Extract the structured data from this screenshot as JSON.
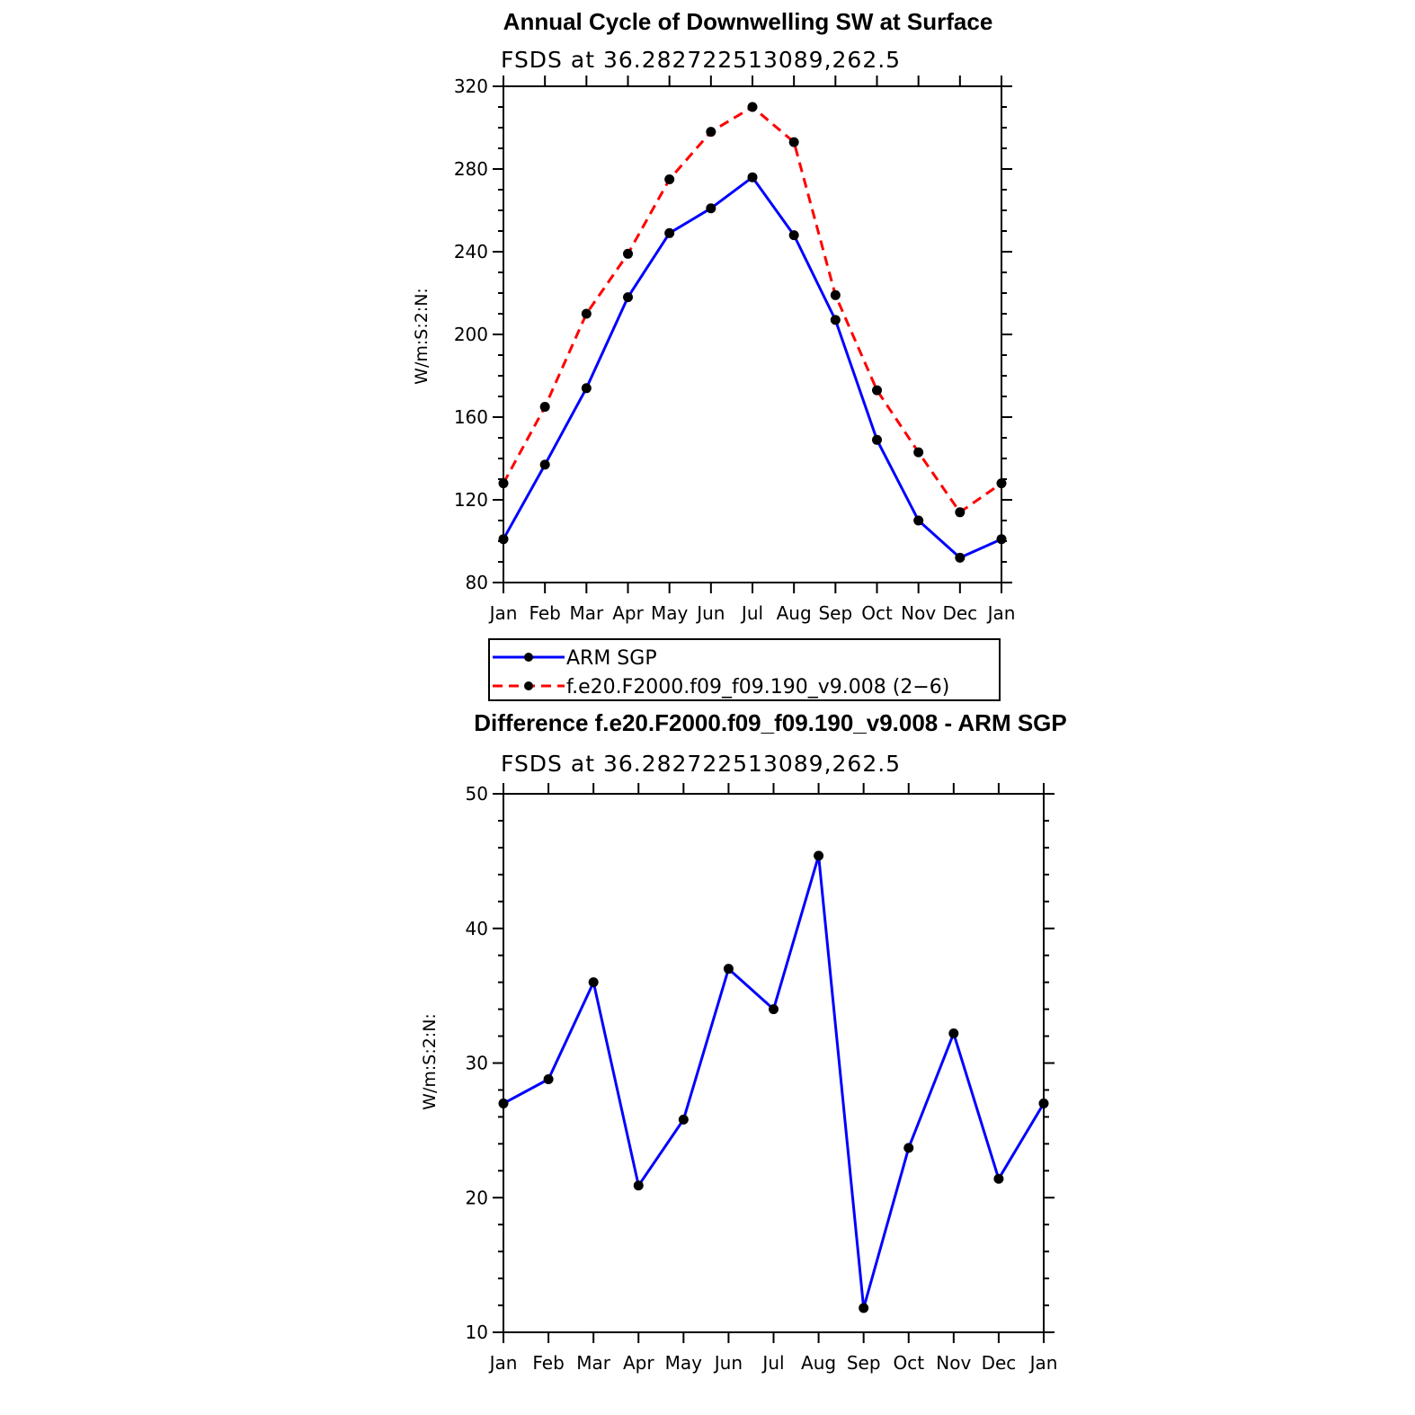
{
  "chart_data": [
    {
      "type": "line",
      "title": "Annual Cycle of Downwelling SW at Surface",
      "subtitle": "FSDS at 36.282722513089,262.5",
      "xlabel": "",
      "ylabel": "W/m:S:2:N:",
      "categories": [
        "Jan",
        "Feb",
        "Mar",
        "Apr",
        "May",
        "Jun",
        "Jul",
        "Aug",
        "Sep",
        "Oct",
        "Nov",
        "Dec",
        "Jan"
      ],
      "ylim": [
        80,
        320
      ],
      "yticks": [
        80,
        120,
        160,
        200,
        240,
        280,
        320
      ],
      "yminor_step": 10,
      "series": [
        {
          "name": "ARM SGP",
          "color": "#0000ff",
          "dash": "solid",
          "values": [
            101,
            137,
            174,
            218,
            249,
            261,
            276,
            248,
            207,
            149,
            110,
            92,
            101
          ]
        },
        {
          "name": "f.e20.F2000.f09_f09.190_v9.008 (2−6)",
          "color": "#ff0000",
          "dash": "dashed",
          "values": [
            128,
            165,
            210,
            239,
            275,
            298,
            310,
            293,
            219,
            173,
            143,
            114,
            128
          ]
        }
      ],
      "legend": "below"
    },
    {
      "type": "line",
      "title": "Difference f.e20.F2000.f09_f09.190_v9.008 - ARM SGP",
      "subtitle": "FSDS at 36.282722513089,262.5",
      "xlabel": "",
      "ylabel": "W/m:S:2:N:",
      "categories": [
        "Jan",
        "Feb",
        "Mar",
        "Apr",
        "May",
        "Jun",
        "Jul",
        "Aug",
        "Sep",
        "Oct",
        "Nov",
        "Dec",
        "Jan"
      ],
      "ylim": [
        10,
        50
      ],
      "yticks": [
        10,
        20,
        30,
        40,
        50
      ],
      "yminor_step": 2,
      "series": [
        {
          "name": "Difference",
          "color": "#0000ff",
          "dash": "solid",
          "values": [
            27,
            28.8,
            36,
            20.9,
            25.8,
            37,
            34,
            45.4,
            11.8,
            23.7,
            32.2,
            21.4,
            27
          ]
        }
      ]
    }
  ]
}
